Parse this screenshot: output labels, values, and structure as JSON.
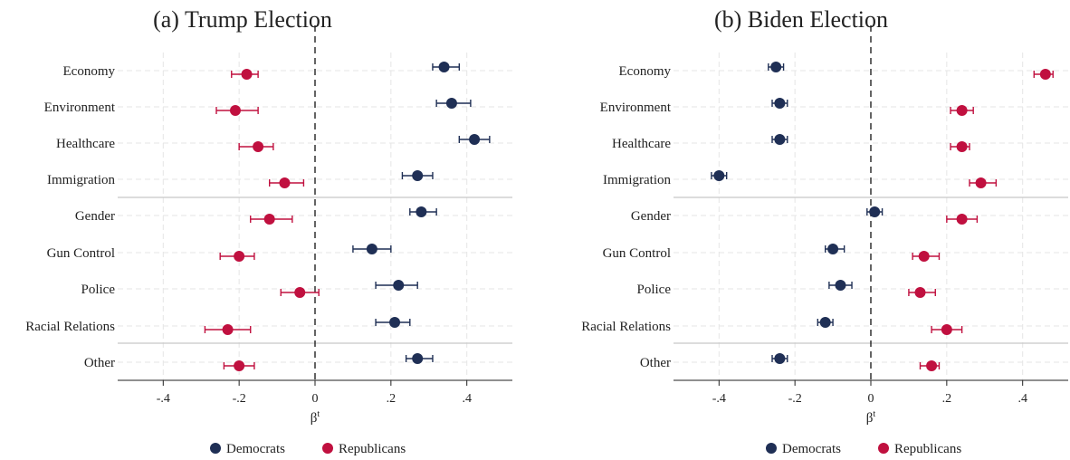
{
  "chart_data": [
    {
      "type": "scatter",
      "title": "(a) Trump Election",
      "xlabel": "β",
      "xlabel_sup": "t",
      "xlim": [
        -0.52,
        0.52
      ],
      "xticks": [
        -0.4,
        -0.2,
        0,
        0.2,
        0.4
      ],
      "xtick_labels": [
        "-.4",
        "-.2",
        "0",
        ".2",
        ".4"
      ],
      "categories": [
        "Economy",
        "Environment",
        "Healthcare",
        "Immigration",
        "Gender",
        "Gun Control",
        "Police",
        "Racial Relations",
        "Other"
      ],
      "separators_after": [
        "Immigration",
        "Racial Relations"
      ],
      "series": [
        {
          "name": "Democrats",
          "color": "#1f2f55",
          "values": [
            0.34,
            0.36,
            0.42,
            0.27,
            0.28,
            0.15,
            0.22,
            0.21,
            0.27
          ],
          "ci_low": [
            0.31,
            0.32,
            0.38,
            0.23,
            0.25,
            0.1,
            0.16,
            0.16,
            0.24
          ],
          "ci_high": [
            0.38,
            0.41,
            0.46,
            0.31,
            0.32,
            0.2,
            0.27,
            0.25,
            0.31
          ]
        },
        {
          "name": "Republicans",
          "color": "#c0103f",
          "values": [
            -0.18,
            -0.21,
            -0.15,
            -0.08,
            -0.12,
            -0.2,
            -0.04,
            -0.23,
            -0.2
          ],
          "ci_low": [
            -0.22,
            -0.26,
            -0.2,
            -0.12,
            -0.17,
            -0.25,
            -0.09,
            -0.29,
            -0.24
          ],
          "ci_high": [
            -0.15,
            -0.15,
            -0.11,
            -0.03,
            -0.06,
            -0.16,
            0.01,
            -0.17,
            -0.16
          ]
        }
      ]
    },
    {
      "type": "scatter",
      "title": "(b) Biden Election",
      "xlabel": "β",
      "xlabel_sup": "t",
      "xlim": [
        -0.52,
        0.52
      ],
      "xticks": [
        -0.4,
        -0.2,
        0,
        0.2,
        0.4
      ],
      "xtick_labels": [
        "-.4",
        "-.2",
        "0",
        ".2",
        ".4"
      ],
      "categories": [
        "Economy",
        "Environment",
        "Healthcare",
        "Immigration",
        "Gender",
        "Gun Control",
        "Police",
        "Racial Relations",
        "Other"
      ],
      "separators_after": [
        "Immigration",
        "Racial Relations"
      ],
      "series": [
        {
          "name": "Democrats",
          "color": "#1f2f55",
          "values": [
            -0.25,
            -0.24,
            -0.24,
            -0.4,
            0.01,
            -0.1,
            -0.08,
            -0.12,
            -0.24
          ],
          "ci_low": [
            -0.27,
            -0.26,
            -0.26,
            -0.42,
            -0.01,
            -0.12,
            -0.11,
            -0.14,
            -0.26
          ],
          "ci_high": [
            -0.23,
            -0.22,
            -0.22,
            -0.38,
            0.03,
            -0.07,
            -0.05,
            -0.1,
            -0.22
          ]
        },
        {
          "name": "Republicans",
          "color": "#c0103f",
          "values": [
            0.46,
            0.24,
            0.24,
            0.29,
            0.24,
            0.14,
            0.13,
            0.2,
            0.16
          ],
          "ci_low": [
            0.43,
            0.21,
            0.21,
            0.26,
            0.2,
            0.11,
            0.1,
            0.16,
            0.13
          ],
          "ci_high": [
            0.48,
            0.27,
            0.26,
            0.33,
            0.28,
            0.18,
            0.17,
            0.24,
            0.18
          ]
        }
      ]
    }
  ],
  "legend": [
    {
      "name": "Democrats",
      "color": "#1f2f55"
    },
    {
      "name": "Republicans",
      "color": "#c0103f"
    }
  ]
}
